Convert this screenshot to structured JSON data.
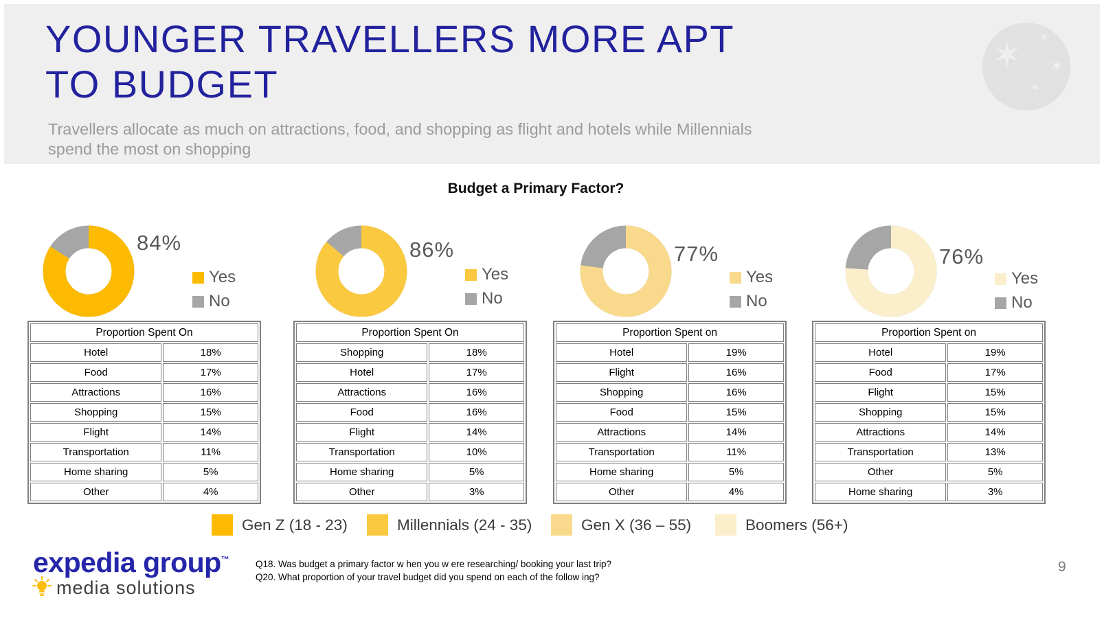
{
  "slide": {
    "title_line1": "YOUNGER TRAVELLERS MORE APT",
    "title_line2": "TO BUDGET",
    "subtitle_line1": "Travellers allocate as much on attractions, food, and shopping as flight and hotels while Millennials",
    "subtitle_line2": "spend the most on shopping",
    "page_number": "9"
  },
  "chart_data": {
    "type": "pie",
    "title": "Budget a Primary Factor?",
    "legend_yes": "Yes",
    "legend_no": "No",
    "no_color": "#A6A6A6",
    "charts": [
      {
        "group": "Gen Z (18 - 23)",
        "yes": 84,
        "no": 16,
        "label": "84%",
        "color": "#FCBB00"
      },
      {
        "group": "Millennials (24 - 35)",
        "yes": 86,
        "no": 14,
        "label": "86%",
        "color": "#FAC93F"
      },
      {
        "group": "Gen X (36 – 55)",
        "yes": 77,
        "no": 23,
        "label": "77%",
        "color": "#F9DA8C"
      },
      {
        "group": "Boomers (56+)",
        "yes": 76,
        "no": 24,
        "label": "76%",
        "color": "#FBEECB"
      }
    ],
    "tables": [
      {
        "header": "Proportion Spent On",
        "rows": [
          [
            "Hotel",
            "18%"
          ],
          [
            "Food",
            "17%"
          ],
          [
            "Attractions",
            "16%"
          ],
          [
            "Shopping",
            "15%"
          ],
          [
            "Flight",
            "14%"
          ],
          [
            "Transportation",
            "11%"
          ],
          [
            "Home sharing",
            "5%"
          ],
          [
            "Other",
            "4%"
          ]
        ]
      },
      {
        "header": "Proportion Spent On",
        "rows": [
          [
            "Shopping",
            "18%"
          ],
          [
            "Hotel",
            "17%"
          ],
          [
            "Attractions",
            "16%"
          ],
          [
            "Food",
            "16%"
          ],
          [
            "Flight",
            "14%"
          ],
          [
            "Transportation",
            "10%"
          ],
          [
            "Home sharing",
            "5%"
          ],
          [
            "Other",
            "3%"
          ]
        ]
      },
      {
        "header": "Proportion Spent on",
        "rows": [
          [
            "Hotel",
            "19%"
          ],
          [
            "Flight",
            "16%"
          ],
          [
            "Shopping",
            "16%"
          ],
          [
            "Food",
            "15%"
          ],
          [
            "Attractions",
            "14%"
          ],
          [
            "Transportation",
            "11%"
          ],
          [
            "Home sharing",
            "5%"
          ],
          [
            "Other",
            "4%"
          ]
        ]
      },
      {
        "header": "Proportion Spent on",
        "rows": [
          [
            "Hotel",
            "19%"
          ],
          [
            "Food",
            "17%"
          ],
          [
            "Flight",
            "15%"
          ],
          [
            "Shopping",
            "15%"
          ],
          [
            "Attractions",
            "14%"
          ],
          [
            "Transportation",
            "13%"
          ],
          [
            "Other",
            "5%"
          ],
          [
            "Home sharing",
            "3%"
          ]
        ]
      }
    ]
  },
  "footer": {
    "logo_line1": "expedia group",
    "logo_tm": "™",
    "logo_line2": "media solutions",
    "note_line1": "Q18. Was budget a primary factor w hen you w ere researching/ booking your last trip?",
    "note_line2": "Q20. What proportion of your travel budget did you spend on each of the follow ing?"
  },
  "icons": {
    "globe_star": "✶",
    "lightbulb": "lightbulb-icon"
  },
  "colors": {
    "title_navy": "#22229E",
    "subtitle_gray": "#9B9B9B",
    "header_band": "#F0EFEF",
    "no_gray": "#A6A6A6",
    "logo_blue": "#2526A9",
    "bulb_yellow": "#FDBD0D"
  }
}
